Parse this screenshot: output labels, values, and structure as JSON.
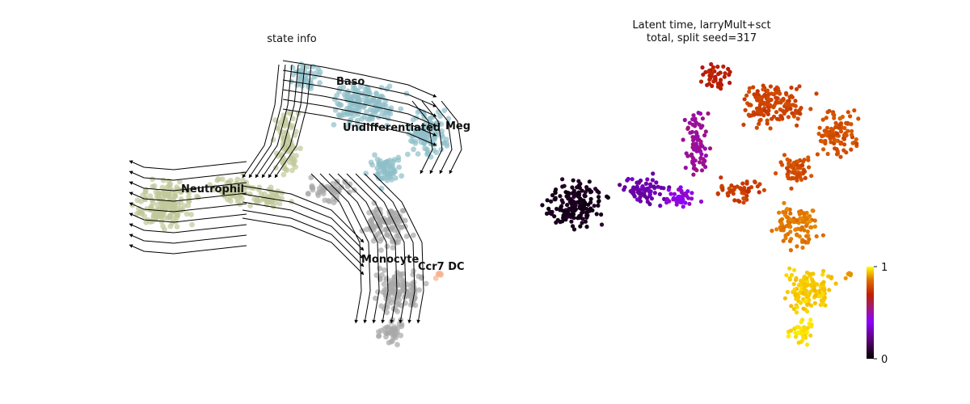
{
  "chart_data": [
    {
      "type": "scatter",
      "title": "state info",
      "embedding": "UMAP with velocity stream lines",
      "legend_placement": "on data",
      "grid": false,
      "axes_visible": false,
      "clusters": [
        {
          "name": "Baso",
          "color": "#8fbfc9"
        },
        {
          "name": "Undifferentiated",
          "color": "#8fbfc9"
        },
        {
          "name": "Meg",
          "color": "#8fbfc9"
        },
        {
          "name": "Neutrophil",
          "color": "#c1c899"
        },
        {
          "name": "Monocyte",
          "color": "#a8a8a8"
        },
        {
          "name": "Ccr7 DC",
          "color": "#f6b28f"
        }
      ],
      "stream_color": "#000000"
    },
    {
      "type": "scatter",
      "title_lines": [
        "Latent time, larryMult+sct",
        "total, split seed=317"
      ],
      "colormap": "gnuplot",
      "colorbar": {
        "min_label": "0",
        "max_label": "1",
        "range": [
          0,
          1
        ],
        "placement": "right"
      },
      "grid": false,
      "axes_visible": false
    }
  ]
}
